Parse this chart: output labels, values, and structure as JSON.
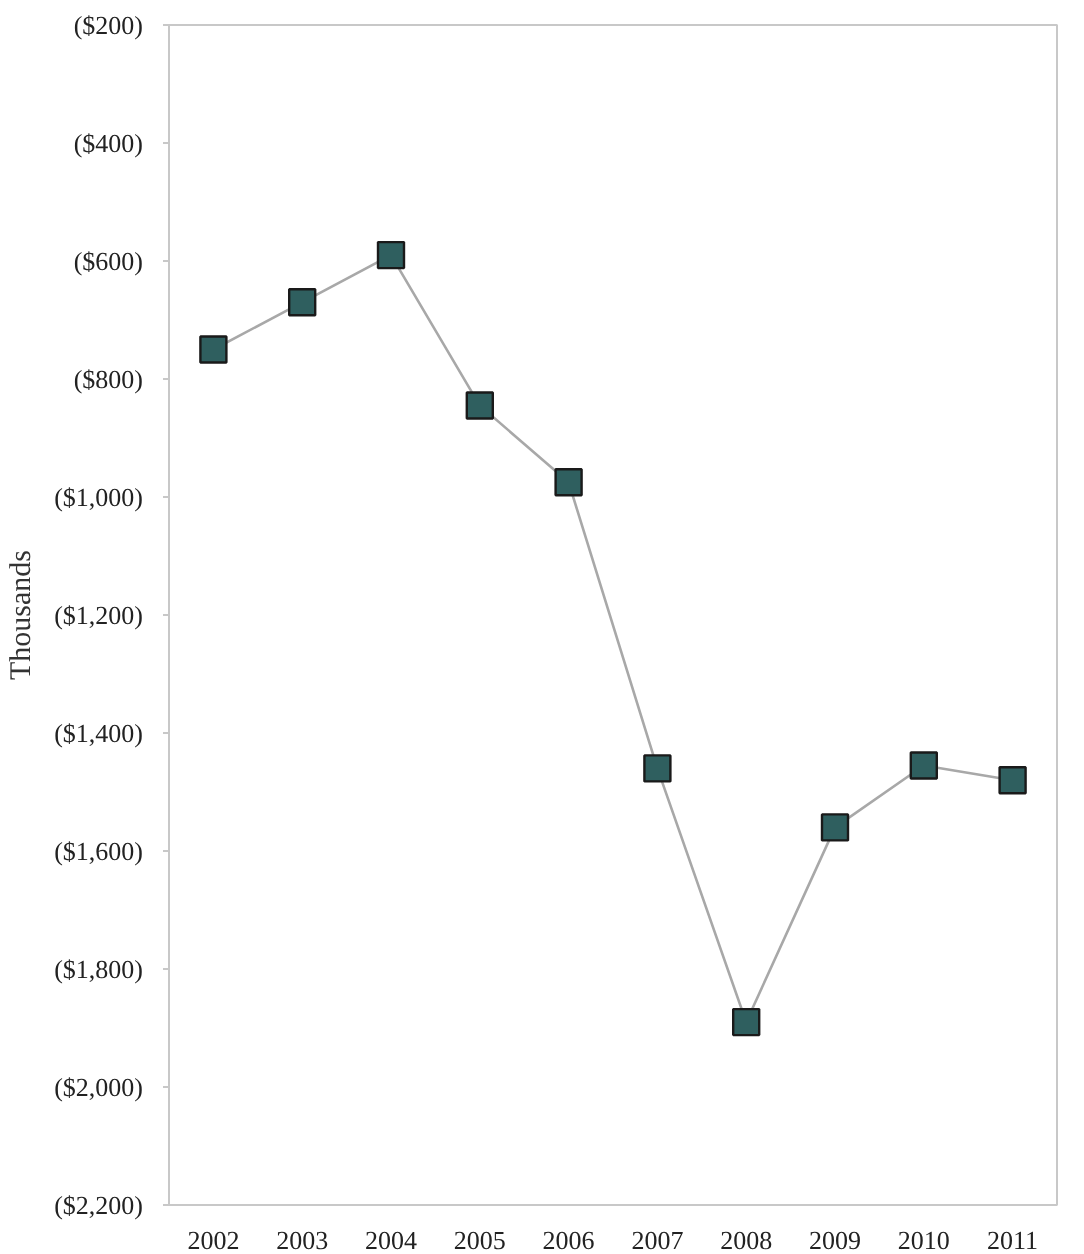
{
  "chart_data": {
    "type": "line",
    "ylabel": "Thousands",
    "categories": [
      "2002",
      "2003",
      "2004",
      "2005",
      "2006",
      "2007",
      "2008",
      "2009",
      "2010",
      "2011"
    ],
    "series": [
      {
        "color": "#2f5f5f",
        "values": [
          -750,
          -670,
          -590,
          -845,
          -975,
          -1460,
          -1890,
          -1560,
          -1455,
          -1480
        ]
      }
    ],
    "ylim": [
      -2200,
      -200
    ],
    "yticks": [
      {
        "value": -200,
        "label": "($200)"
      },
      {
        "value": -400,
        "label": "($400)"
      },
      {
        "value": -600,
        "label": "($600)"
      },
      {
        "value": -800,
        "label": "($800)"
      },
      {
        "value": -1000,
        "label": "($1,000)"
      },
      {
        "value": -1200,
        "label": "($1,200)"
      },
      {
        "value": -1400,
        "label": "($1,400)"
      },
      {
        "value": -1600,
        "label": "($1,600)"
      },
      {
        "value": -1800,
        "label": "($1,800)"
      },
      {
        "value": -2000,
        "label": "($2,000)"
      },
      {
        "value": -2200,
        "label": "($2,200)"
      }
    ],
    "marker": "square"
  }
}
